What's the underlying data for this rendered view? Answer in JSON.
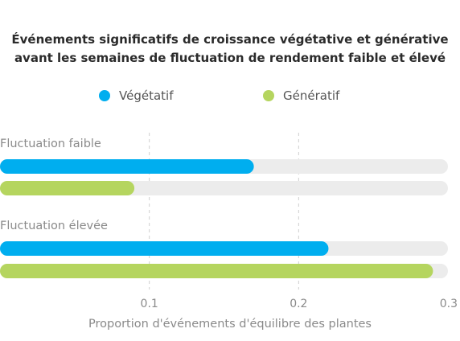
{
  "chart_data": {
    "type": "bar",
    "orientation": "horizontal",
    "title_lines": [
      "Événements significatifs de croissance végétative et générative",
      "avant les semaines de fluctuation de rendement faible et élevé"
    ],
    "xlabel": "Proportion d'événements d'équilibre des plantes",
    "ylabel": "",
    "xlim": [
      0,
      0.3
    ],
    "xticks": [
      "0.1",
      "0.2",
      "0.3"
    ],
    "grid": "vertical dashed",
    "legend_position": "top",
    "groups": [
      "Fluctuation faible",
      "Fluctuation élevée"
    ],
    "series": [
      {
        "name": "Végétatif",
        "color": "#00aeef",
        "values": [
          0.17,
          0.22
        ]
      },
      {
        "name": "Génératif",
        "color": "#b5d55f",
        "values": [
          0.09,
          0.29
        ]
      }
    ],
    "track_color": "#ececec"
  }
}
